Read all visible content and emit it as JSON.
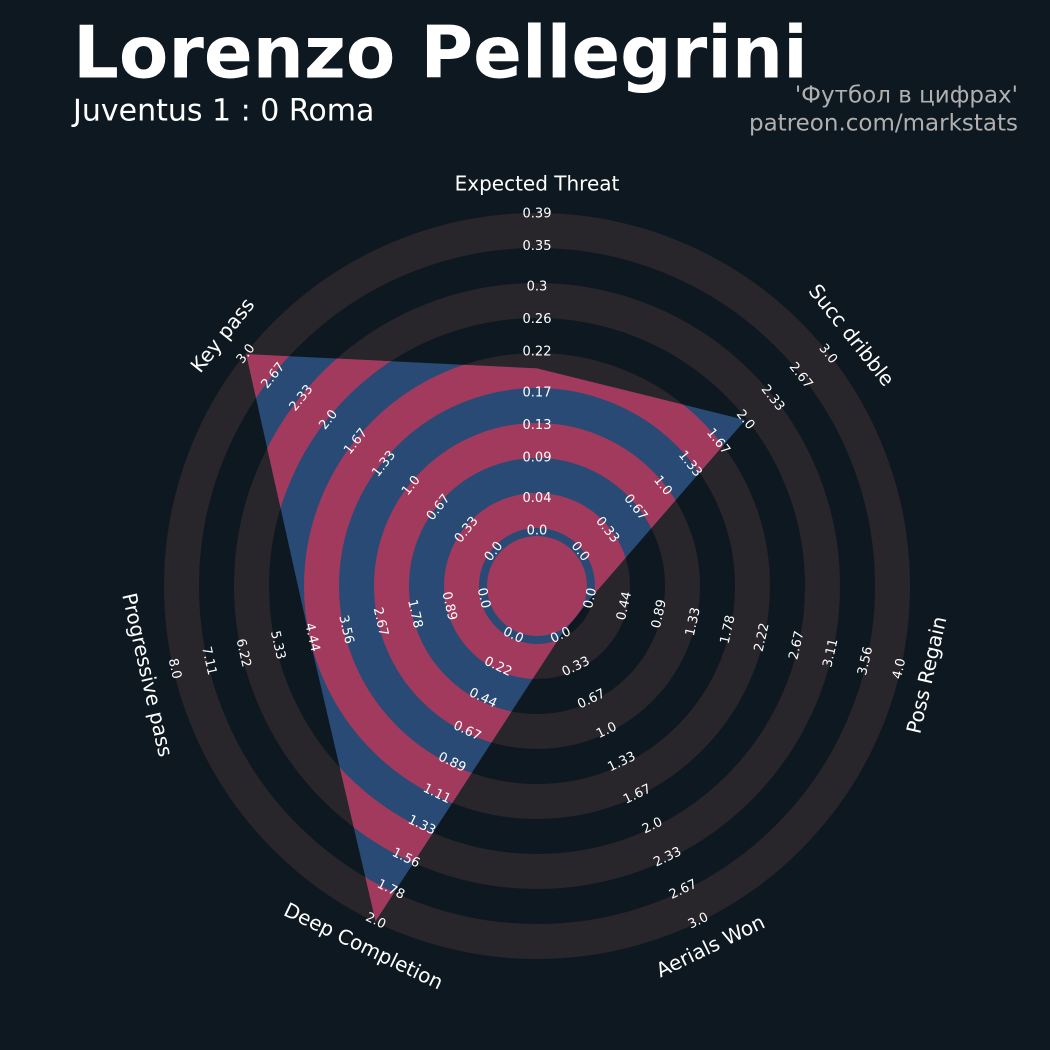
{
  "chart_data": {
    "type": "radar",
    "title": "Lorenzo Pellegrini",
    "subtitle": "Juventus 1 : 0 Roma",
    "credits": [
      "'Футбол в цифрах'",
      "patreon.com/markstats"
    ],
    "categories": [
      "Expected Threat",
      "Succ dribble",
      "Poss Regain",
      "Aerials Won",
      "Deep Completion",
      "Progressive pass",
      "Key pass"
    ],
    "values": [
      0.2,
      2.0,
      0,
      0,
      2.0,
      4.5,
      3.0
    ],
    "color": "#284a74",
    "ring_color": "#a23a5e",
    "background_ring_color": "#28252b",
    "axes": [
      {
        "lim": [
          0,
          0.39
        ],
        "ticks": [
          {
            "value": 0,
            "label": "0.0"
          },
          0.04,
          0.09,
          0.13,
          0.17,
          0.22,
          0.26,
          0.3,
          0.35,
          0.39
        ]
      },
      {
        "lim": [
          0,
          3
        ],
        "ticks": [
          {
            "value": 0,
            "label": "0.0"
          },
          0.33,
          0.67,
          {
            "value": 1,
            "label": "1.0"
          },
          1.33,
          1.67,
          {
            "value": 2,
            "label": "2.0"
          },
          2.33,
          2.67,
          {
            "value": 3,
            "label": "3.0"
          }
        ]
      },
      {
        "lim": [
          0,
          4
        ],
        "ticks": [
          {
            "value": 0,
            "label": "0.0"
          },
          0.44,
          0.89,
          1.33,
          1.78,
          2.22,
          2.67,
          3.11,
          3.56,
          {
            "value": 4,
            "label": "4.0"
          }
        ]
      },
      {
        "lim": [
          0,
          3
        ],
        "ticks": [
          {
            "value": 0,
            "label": "0.0"
          },
          0.33,
          0.67,
          {
            "value": 1,
            "label": "1.0"
          },
          1.33,
          1.67,
          {
            "value": 2,
            "label": "2.0"
          },
          2.33,
          2.67,
          {
            "value": 3,
            "label": "3.0"
          }
        ]
      },
      {
        "lim": [
          0,
          2
        ],
        "ticks": [
          {
            "value": 0,
            "label": "0.0"
          },
          0.22,
          0.44,
          0.67,
          0.89,
          1.11,
          1.33,
          1.56,
          1.78,
          {
            "value": 2,
            "label": "2.0"
          }
        ]
      },
      {
        "lim": [
          0,
          8
        ],
        "ticks": [
          {
            "value": 0,
            "label": "0.0"
          },
          0.89,
          1.78,
          2.67,
          3.56,
          4.44,
          5.33,
          6.22,
          7.11,
          {
            "value": 8,
            "label": "8.0"
          }
        ]
      },
      {
        "lim": [
          0,
          3
        ],
        "ticks": [
          {
            "value": 0,
            "label": "0.0"
          },
          0.33,
          0.67,
          {
            "value": 1,
            "label": "1.0"
          },
          1.33,
          1.67,
          {
            "value": 2,
            "label": "2.0"
          },
          2.33,
          2.67,
          {
            "value": 3,
            "label": "3.0"
          }
        ]
      }
    ]
  }
}
